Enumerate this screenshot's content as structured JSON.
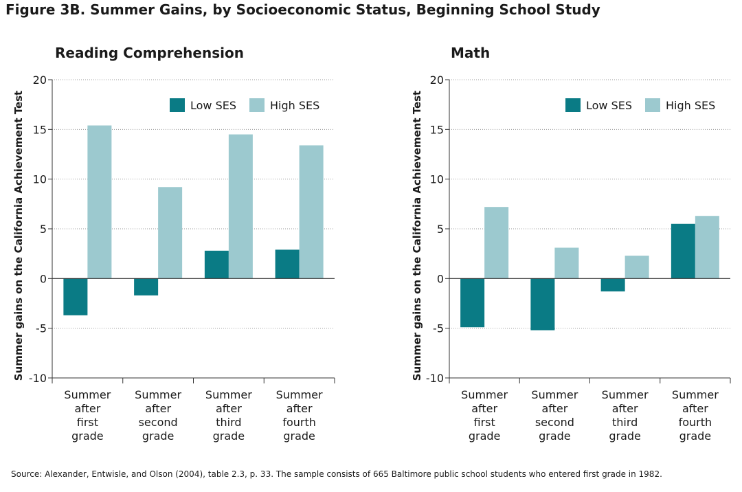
{
  "figure": {
    "title": "Figure 3B. Summer Gains, by Socioeconomic Status, Beginning School Study",
    "source": "Source: Alexander, Entwisle, and Olson (2004), table 2.3, p. 33. The sample consists of 665 Baltimore public school students who entered first grade in 1982."
  },
  "colors": {
    "low": "#0a7b85",
    "high": "#9cc9cf",
    "grid": "#999999",
    "axis": "#333333"
  },
  "chart_data": [
    {
      "type": "bar",
      "title": "Reading Comprehension",
      "ylabel": "Summer gains on the California Achievement Test",
      "xlabel": "",
      "ylim": [
        -10,
        20
      ],
      "yticks": [
        -10,
        -5,
        0,
        5,
        10,
        15,
        20
      ],
      "ytick_labels": [
        "-10",
        "-5",
        "0",
        "5",
        "10",
        "15",
        "20"
      ],
      "categories": [
        [
          "Summer",
          "after",
          "first",
          "grade"
        ],
        [
          "Summer",
          "after",
          "second",
          "grade"
        ],
        [
          "Summer",
          "after",
          "third",
          "grade"
        ],
        [
          "Summer",
          "after",
          "fourth",
          "grade"
        ]
      ],
      "series": [
        {
          "name": "Low SES",
          "values": [
            -3.7,
            -1.7,
            2.8,
            2.9
          ]
        },
        {
          "name": "High SES",
          "values": [
            15.4,
            9.2,
            14.5,
            13.4
          ]
        }
      ],
      "legend": "top-right",
      "grid": "horizontal dotted"
    },
    {
      "type": "bar",
      "title": "Math",
      "ylabel": "Summer gains on the California Achievement Test",
      "xlabel": "",
      "ylim": [
        -10,
        20
      ],
      "yticks": [
        -10,
        -5,
        0,
        5,
        10,
        15,
        20
      ],
      "ytick_labels": [
        "-10",
        "-5",
        "0",
        "5",
        "10",
        "15",
        "20"
      ],
      "categories": [
        [
          "Summer",
          "after",
          "first",
          "grade"
        ],
        [
          "Summer",
          "after",
          "second",
          "grade"
        ],
        [
          "Summer",
          "after",
          "third",
          "grade"
        ],
        [
          "Summer",
          "after",
          "fourth",
          "grade"
        ]
      ],
      "series": [
        {
          "name": "Low SES",
          "values": [
            -4.9,
            -5.2,
            -1.3,
            5.5
          ]
        },
        {
          "name": "High SES",
          "values": [
            7.2,
            3.1,
            2.3,
            6.3
          ]
        }
      ],
      "legend": "top-right",
      "grid": "horizontal dotted"
    }
  ]
}
